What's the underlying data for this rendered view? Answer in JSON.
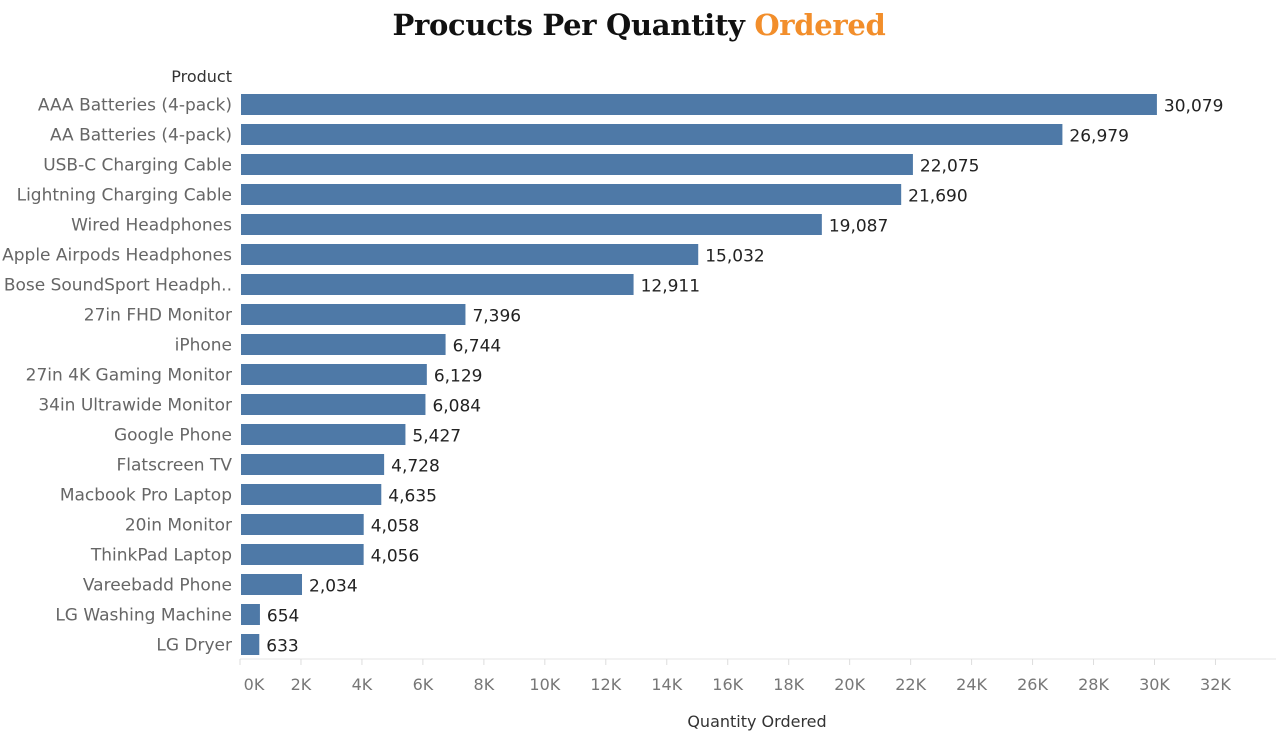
{
  "chart_data": {
    "type": "bar",
    "orientation": "horizontal",
    "title_main": "Procucts Per Quantity",
    "title_accent": "Ordered",
    "ylabel": "Product",
    "xlabel": "Quantity Ordered",
    "xlim": [
      0,
      32000
    ],
    "ticks": [
      0,
      2000,
      4000,
      6000,
      8000,
      10000,
      12000,
      14000,
      16000,
      18000,
      20000,
      22000,
      24000,
      26000,
      28000,
      30000,
      32000
    ],
    "tick_labels": [
      "0K",
      "2K",
      "4K",
      "6K",
      "8K",
      "10K",
      "12K",
      "14K",
      "16K",
      "18K",
      "20K",
      "22K",
      "24K",
      "26K",
      "28K",
      "30K",
      "32K"
    ],
    "categories": [
      "AAA Batteries (4-pack)",
      "AA Batteries (4-pack)",
      "USB-C Charging Cable",
      "Lightning Charging Cable",
      "Wired Headphones",
      "Apple Airpods Headphones",
      "Bose SoundSport Headph..",
      "27in FHD Monitor",
      "iPhone",
      "27in 4K Gaming Monitor",
      "34in Ultrawide Monitor",
      "Google Phone",
      "Flatscreen TV",
      "Macbook Pro Laptop",
      "20in Monitor",
      "ThinkPad Laptop",
      "Vareebadd Phone",
      "LG Washing Machine",
      "LG Dryer"
    ],
    "values": [
      30079,
      26979,
      22075,
      21690,
      19087,
      15032,
      12911,
      7396,
      6744,
      6129,
      6084,
      5427,
      4728,
      4635,
      4058,
      4056,
      2034,
      654,
      633
    ],
    "value_labels": [
      "30,079",
      "26,979",
      "22,075",
      "21,690",
      "19,087",
      "15,032",
      "12,911",
      "7,396",
      "6,744",
      "6,129",
      "6,084",
      "5,427",
      "4,728",
      "4,635",
      "4,058",
      "4,056",
      "2,034",
      "654",
      "633"
    ],
    "bar_color": "#4e79a7",
    "accent_color": "#f28e2b",
    "grid": false,
    "legend": "none"
  }
}
